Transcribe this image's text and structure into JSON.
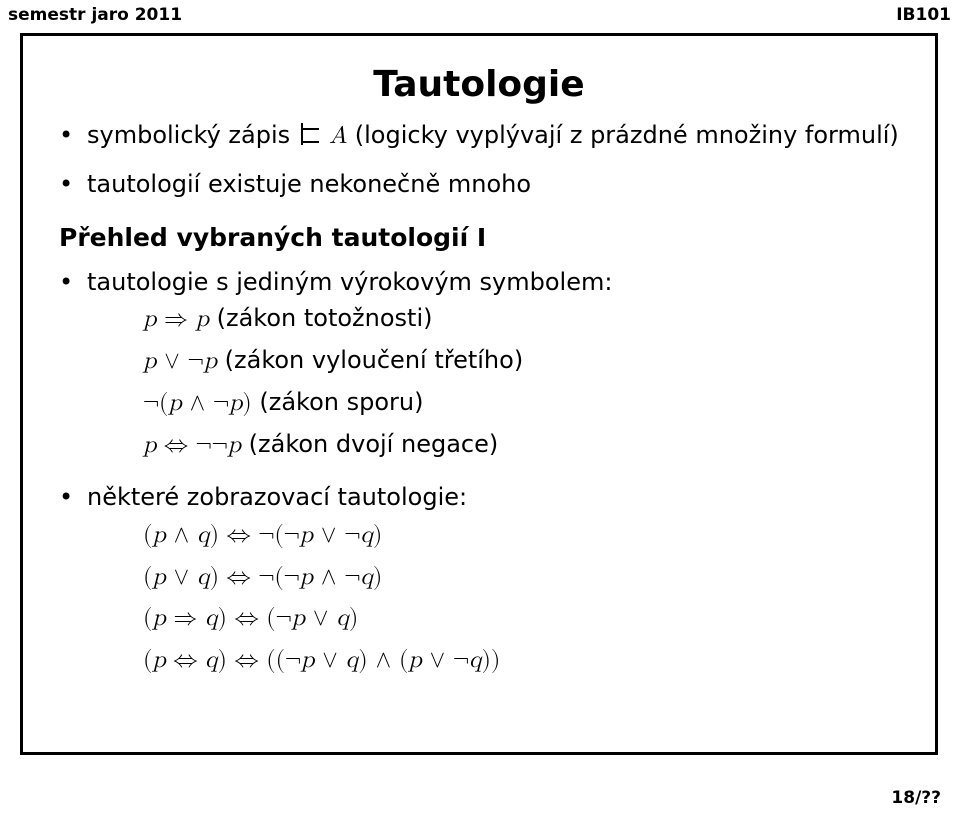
{
  "header": {
    "left": "semestr jaro 2011",
    "right": "IB101"
  },
  "title": "Tautologie",
  "bullets_top": [
    {
      "prefix": "symbolický zápis ",
      "math_html": "<span class=\"turnstile\"></span> <span class=\"mi\">A</span>",
      "suffix": " (logicky vyplývají z prázdné množiny formulí)"
    },
    {
      "prefix": "tautologií existuje nekonečně mnoho",
      "math_html": "",
      "suffix": ""
    }
  ],
  "subhead": "Přehled vybraných tautologií I",
  "bullets_bottom": [
    {
      "label": "tautologie s jediným výrokovým symbolem:",
      "lines": [
        {
          "math_html": "<span class=\"mi\">p</span> <span class=\"mo\">⇒</span> <span class=\"mi\">p</span>",
          "note": " (zákon totožnosti)"
        },
        {
          "math_html": "<span class=\"mi\">p</span> <span class=\"mo\">∨</span> <span class=\"mo\">¬</span><span class=\"mi\">p</span>",
          "note": " (zákon vyloučení třetího)"
        },
        {
          "math_html": "<span class=\"mo\">¬(</span><span class=\"mi\">p</span> <span class=\"mo\">∧</span> <span class=\"mo\">¬</span><span class=\"mi\">p</span><span class=\"mo\">)</span>",
          "note": " (zákon sporu)"
        },
        {
          "math_html": "<span class=\"mi\">p</span> <span class=\"mo\">⇔</span> <span class=\"mo\">¬¬</span><span class=\"mi\">p</span>",
          "note": " (zákon dvojí negace)"
        }
      ]
    },
    {
      "label": "některé zobrazovací tautologie:",
      "lines": [
        {
          "math_html": "<span class=\"mo\">(</span><span class=\"mi\">p</span> <span class=\"mo\">∧</span> <span class=\"mi\">q</span><span class=\"mo\">)</span> <span class=\"mo\">⇔</span> <span class=\"mo\">¬(¬</span><span class=\"mi\">p</span> <span class=\"mo\">∨</span> <span class=\"mo\">¬</span><span class=\"mi\">q</span><span class=\"mo\">)</span>",
          "note": ""
        },
        {
          "math_html": "<span class=\"mo\">(</span><span class=\"mi\">p</span> <span class=\"mo\">∨</span> <span class=\"mi\">q</span><span class=\"mo\">)</span> <span class=\"mo\">⇔</span> <span class=\"mo\">¬(¬</span><span class=\"mi\">p</span> <span class=\"mo\">∧</span> <span class=\"mo\">¬</span><span class=\"mi\">q</span><span class=\"mo\">)</span>",
          "note": ""
        },
        {
          "math_html": "<span class=\"mo\">(</span><span class=\"mi\">p</span> <span class=\"mo\">⇒</span> <span class=\"mi\">q</span><span class=\"mo\">)</span> <span class=\"mo\">⇔</span> <span class=\"mo\">(¬</span><span class=\"mi\">p</span> <span class=\"mo\">∨</span> <span class=\"mi\">q</span><span class=\"mo\">)</span>",
          "note": ""
        },
        {
          "math_html": "<span class=\"mo\">(</span><span class=\"mi\">p</span> <span class=\"mo\">⇔</span> <span class=\"mi\">q</span><span class=\"mo\">)</span> <span class=\"mo\">⇔</span> <span class=\"mo\">((¬</span><span class=\"mi\">p</span> <span class=\"mo\">∨</span> <span class=\"mi\">q</span><span class=\"mo\">)</span> <span class=\"mo\">∧</span> <span class=\"mo\">(</span><span class=\"mi\">p</span> <span class=\"mo\">∨</span> <span class=\"mo\">¬</span><span class=\"mi\">q</span><span class=\"mo\">))</span>",
          "note": ""
        }
      ]
    }
  ],
  "footer": "18/??",
  "colors": {
    "background": "#ffffff",
    "text": "#000000",
    "border": "#000000"
  }
}
